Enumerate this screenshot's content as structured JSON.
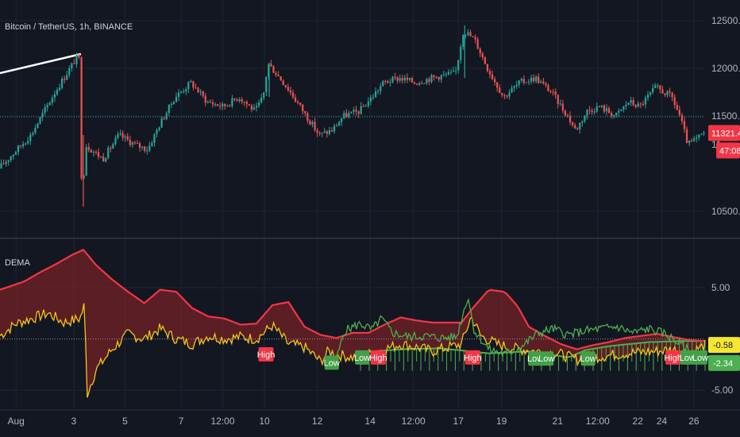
{
  "symbol": {
    "title": "Bitcoin / TetherUS, 1h, BINANCE"
  },
  "indicator": {
    "name": "DEMA"
  },
  "colors": {
    "background": "#131722",
    "grid": "#1f2430",
    "up": "#26a69a",
    "down": "#ef5350",
    "red_line": "#f23645",
    "yellow_line": "#f5c518",
    "green_line": "#4caf50",
    "high_tag": "#f23645",
    "low_tag": "#43a047",
    "price_tag": "#f23645",
    "yellow_tag": "#f5e633",
    "green_tag": "#4caf50"
  },
  "chart_data": [
    {
      "type": "candlestick",
      "title": "Bitcoin / TetherUS, 1h, BINANCE",
      "ylim": [
        10250,
        12650
      ],
      "y_ticks": [
        "12500.00",
        "12000.00",
        "11500.00",
        "10500.00"
      ],
      "price_ticks": [
        12500,
        12000,
        11500,
        10500
      ],
      "last_price": "11321.47",
      "countdown": "47:08",
      "partial_tick": "11",
      "close_path": [
        [
          0,
          10950
        ],
        [
          2,
          11300
        ],
        [
          3.5,
          11750
        ],
        [
          5,
          12150
        ],
        [
          5.2,
          10550
        ],
        [
          5.4,
          11200
        ],
        [
          6.5,
          11050
        ],
        [
          7.5,
          11300
        ],
        [
          8.5,
          11200
        ],
        [
          9.3,
          11150
        ],
        [
          10,
          11400
        ],
        [
          11,
          11700
        ],
        [
          12,
          11850
        ],
        [
          13,
          11650
        ],
        [
          14,
          11600
        ],
        [
          15,
          11700
        ],
        [
          16,
          11550
        ],
        [
          16.5,
          11700
        ],
        [
          16.8,
          12050
        ],
        [
          17.3,
          11950
        ],
        [
          18,
          11800
        ],
        [
          19,
          11550
        ],
        [
          20,
          11300
        ],
        [
          20.8,
          11350
        ],
        [
          21.5,
          11500
        ],
        [
          22.5,
          11550
        ],
        [
          23.3,
          11700
        ],
        [
          24,
          11850
        ],
        [
          25,
          11900
        ],
        [
          26,
          11850
        ],
        [
          27,
          11900
        ],
        [
          28.5,
          11950
        ],
        [
          29,
          12400
        ],
        [
          29.7,
          12300
        ],
        [
          30.5,
          12000
        ],
        [
          31.5,
          11700
        ],
        [
          32.5,
          11850
        ],
        [
          33.5,
          11900
        ],
        [
          34.5,
          11750
        ],
        [
          35.5,
          11500
        ],
        [
          36,
          11350
        ],
        [
          36.7,
          11550
        ],
        [
          37.5,
          11600
        ],
        [
          38.5,
          11500
        ],
        [
          39.3,
          11650
        ],
        [
          40,
          11600
        ],
        [
          41,
          11800
        ],
        [
          42,
          11700
        ],
        [
          42.5,
          11500
        ],
        [
          43,
          11200
        ],
        [
          43.5,
          11250
        ],
        [
          44,
          11321
        ]
      ]
    },
    {
      "type": "line",
      "title": "DEMA",
      "ylim": [
        -6.3,
        9.5
      ],
      "y_ticks": [
        "5.00",
        "-5.00"
      ],
      "y_tick_values": [
        5,
        -5
      ],
      "baseline": 0,
      "series": [
        {
          "role": "red-band",
          "points": [
            [
              0,
              4.8
            ],
            [
              1.5,
              5.6
            ],
            [
              2.5,
              6.5
            ],
            [
              3.5,
              7.3
            ],
            [
              4.5,
              8.2
            ],
            [
              5.2,
              8.7
            ],
            [
              6,
              7.2
            ],
            [
              7,
              5.8
            ],
            [
              8,
              4.6
            ],
            [
              9,
              3.5
            ],
            [
              10,
              4.8
            ],
            [
              11,
              4.6
            ],
            [
              12,
              3.0
            ],
            [
              13,
              2.2
            ],
            [
              14,
              2.0
            ],
            [
              15,
              1.4
            ],
            [
              16,
              1.5
            ],
            [
              17,
              3.3
            ],
            [
              18,
              3.6
            ],
            [
              19,
              1.2
            ],
            [
              20,
              0.4
            ],
            [
              21,
              0.1
            ],
            [
              22,
              0.6
            ],
            [
              23,
              0.6
            ],
            [
              24,
              1.4
            ],
            [
              25,
              2.1
            ],
            [
              26,
              1.8
            ],
            [
              27,
              1.6
            ],
            [
              28,
              1.6
            ],
            [
              28.8,
              1.6
            ],
            [
              29.5,
              3.0
            ],
            [
              30.5,
              4.8
            ],
            [
              31.5,
              4.6
            ],
            [
              32.3,
              3.2
            ],
            [
              33,
              1.2
            ],
            [
              34,
              0.3
            ],
            [
              35,
              -0.5
            ],
            [
              36,
              -1.0
            ],
            [
              37,
              -0.6
            ],
            [
              38,
              -0.3
            ],
            [
              39,
              0.1
            ],
            [
              40,
              0.3
            ],
            [
              41,
              0.5
            ],
            [
              42,
              0.2
            ],
            [
              43,
              -0.1
            ],
            [
              44,
              -0.2
            ]
          ]
        },
        {
          "role": "yellow-dema",
          "points": [
            [
              0,
              0.3
            ],
            [
              1,
              1.5
            ],
            [
              2,
              2.0
            ],
            [
              3,
              2.5
            ],
            [
              4,
              1.6
            ],
            [
              5,
              2.0
            ],
            [
              5.3,
              3.5
            ],
            [
              5.4,
              -5.5
            ],
            [
              6,
              -3.0
            ],
            [
              7,
              -1.0
            ],
            [
              8,
              0.5
            ],
            [
              9,
              0.0
            ],
            [
              10,
              1.0
            ],
            [
              11,
              0.0
            ],
            [
              12,
              -0.5
            ],
            [
              13,
              0.3
            ],
            [
              14,
              0.0
            ],
            [
              15,
              0.2
            ],
            [
              16,
              0.0
            ],
            [
              17,
              1.3
            ],
            [
              18,
              -0.5
            ],
            [
              19,
              -0.8
            ],
            [
              20,
              -2.2
            ],
            [
              20.5,
              -1.2
            ],
            [
              21,
              -1.5
            ],
            [
              22,
              -1.8
            ],
            [
              23,
              -1.5
            ],
            [
              24,
              -1.0
            ],
            [
              25,
              -0.5
            ],
            [
              26,
              -0.8
            ],
            [
              27,
              -1.2
            ],
            [
              28,
              -0.8
            ],
            [
              28.8,
              -0.5
            ],
            [
              29.4,
              2.2
            ],
            [
              30,
              0.3
            ],
            [
              31,
              -0.5
            ],
            [
              32,
              -0.9
            ],
            [
              33,
              -1.1
            ],
            [
              34,
              -1.3
            ],
            [
              35,
              -1.5
            ],
            [
              36,
              -2.0
            ],
            [
              37,
              -1.8
            ],
            [
              38,
              -1.6
            ],
            [
              39,
              -1.4
            ],
            [
              40,
              -1.3
            ],
            [
              41,
              -1.2
            ],
            [
              42,
              -1.0
            ],
            [
              43,
              -1.4
            ],
            [
              44,
              -0.6
            ]
          ]
        },
        {
          "role": "green-dema",
          "points": [
            [
              21,
              -2.0
            ],
            [
              21.5,
              0.8
            ],
            [
              22.5,
              1.5
            ],
            [
              23.2,
              0.9
            ],
            [
              23.8,
              2.0
            ],
            [
              24.5,
              0.6
            ],
            [
              25.5,
              0.2
            ],
            [
              26.5,
              0.3
            ],
            [
              27.5,
              0.1
            ],
            [
              28.5,
              0.2
            ],
            [
              29.2,
              4.2
            ],
            [
              29.6,
              0.8
            ],
            [
              30.5,
              -1.0
            ],
            [
              31.5,
              -1.5
            ],
            [
              32.5,
              -0.8
            ],
            [
              33.5,
              0.5
            ],
            [
              34.5,
              1.0
            ],
            [
              35.5,
              0.4
            ],
            [
              36.5,
              0.8
            ],
            [
              37.5,
              1.0
            ],
            [
              38.5,
              1.2
            ],
            [
              39.5,
              0.6
            ],
            [
              40.5,
              1.0
            ],
            [
              41.5,
              0.5
            ],
            [
              42.5,
              -0.5
            ],
            [
              43.2,
              -1.5
            ],
            [
              44,
              -2.3
            ]
          ]
        },
        {
          "role": "green-rising-band",
          "points": [
            [
              22.5,
              -1.3
            ],
            [
              25,
              -1.0
            ],
            [
              27.5,
              -0.9
            ],
            [
              30.5,
              -1.4
            ],
            [
              33,
              -1.2
            ],
            [
              35.5,
              -1.8
            ],
            [
              36.5,
              -1.1
            ],
            [
              38,
              -0.7
            ],
            [
              40.5,
              -0.3
            ],
            [
              42.5,
              -0.2
            ],
            [
              44,
              -0.2
            ]
          ]
        }
      ],
      "signals": [
        {
          "x": 16.6,
          "y": -1.5,
          "label": "High",
          "kind": "high"
        },
        {
          "x": 20.7,
          "y": -2.3,
          "label": "Low",
          "kind": "low"
        },
        {
          "x": 22.6,
          "y": -1.8,
          "label": "Low",
          "kind": "low"
        },
        {
          "x": 23.6,
          "y": -1.8,
          "label": "High",
          "kind": "high"
        },
        {
          "x": 29.5,
          "y": -1.8,
          "label": "High",
          "kind": "high"
        },
        {
          "x": 33.4,
          "y": -1.9,
          "label": "Low",
          "kind": "low"
        },
        {
          "x": 34.1,
          "y": -1.9,
          "label": "Low",
          "kind": "low"
        },
        {
          "x": 36.7,
          "y": -1.9,
          "label": "Low",
          "kind": "low"
        },
        {
          "x": 42.0,
          "y": -1.8,
          "label": "High",
          "kind": "high"
        },
        {
          "x": 42.9,
          "y": -1.8,
          "label": "Low",
          "kind": "low"
        },
        {
          "x": 43.7,
          "y": -1.8,
          "label": "Low",
          "kind": "low"
        }
      ],
      "value_tags": [
        {
          "label": "-0.58",
          "value": -0.58,
          "kind": "yellow"
        },
        {
          "label": "-2.34",
          "value": -2.34,
          "kind": "green"
        }
      ]
    }
  ],
  "x_axis": {
    "domain": [
      0,
      44
    ],
    "ticks": [
      {
        "x": 1.0,
        "label": "Aug"
      },
      {
        "x": 4.6,
        "label": "3"
      },
      {
        "x": 7.8,
        "label": "5"
      },
      {
        "x": 11.3,
        "label": "7"
      },
      {
        "x": 13.9,
        "label": "12:00"
      },
      {
        "x": 16.5,
        "label": "10"
      },
      {
        "x": 19.8,
        "label": "12"
      },
      {
        "x": 23.1,
        "label": "14"
      },
      {
        "x": 25.8,
        "label": "12:00"
      },
      {
        "x": 28.6,
        "label": "17"
      },
      {
        "x": 31.3,
        "label": "19"
      },
      {
        "x": 34.8,
        "label": "21"
      },
      {
        "x": 37.3,
        "label": "12:00"
      },
      {
        "x": 39.8,
        "label": "22"
      },
      {
        "x": 41.3,
        "label": "24"
      },
      {
        "x": 43.3,
        "label": "26"
      }
    ]
  }
}
